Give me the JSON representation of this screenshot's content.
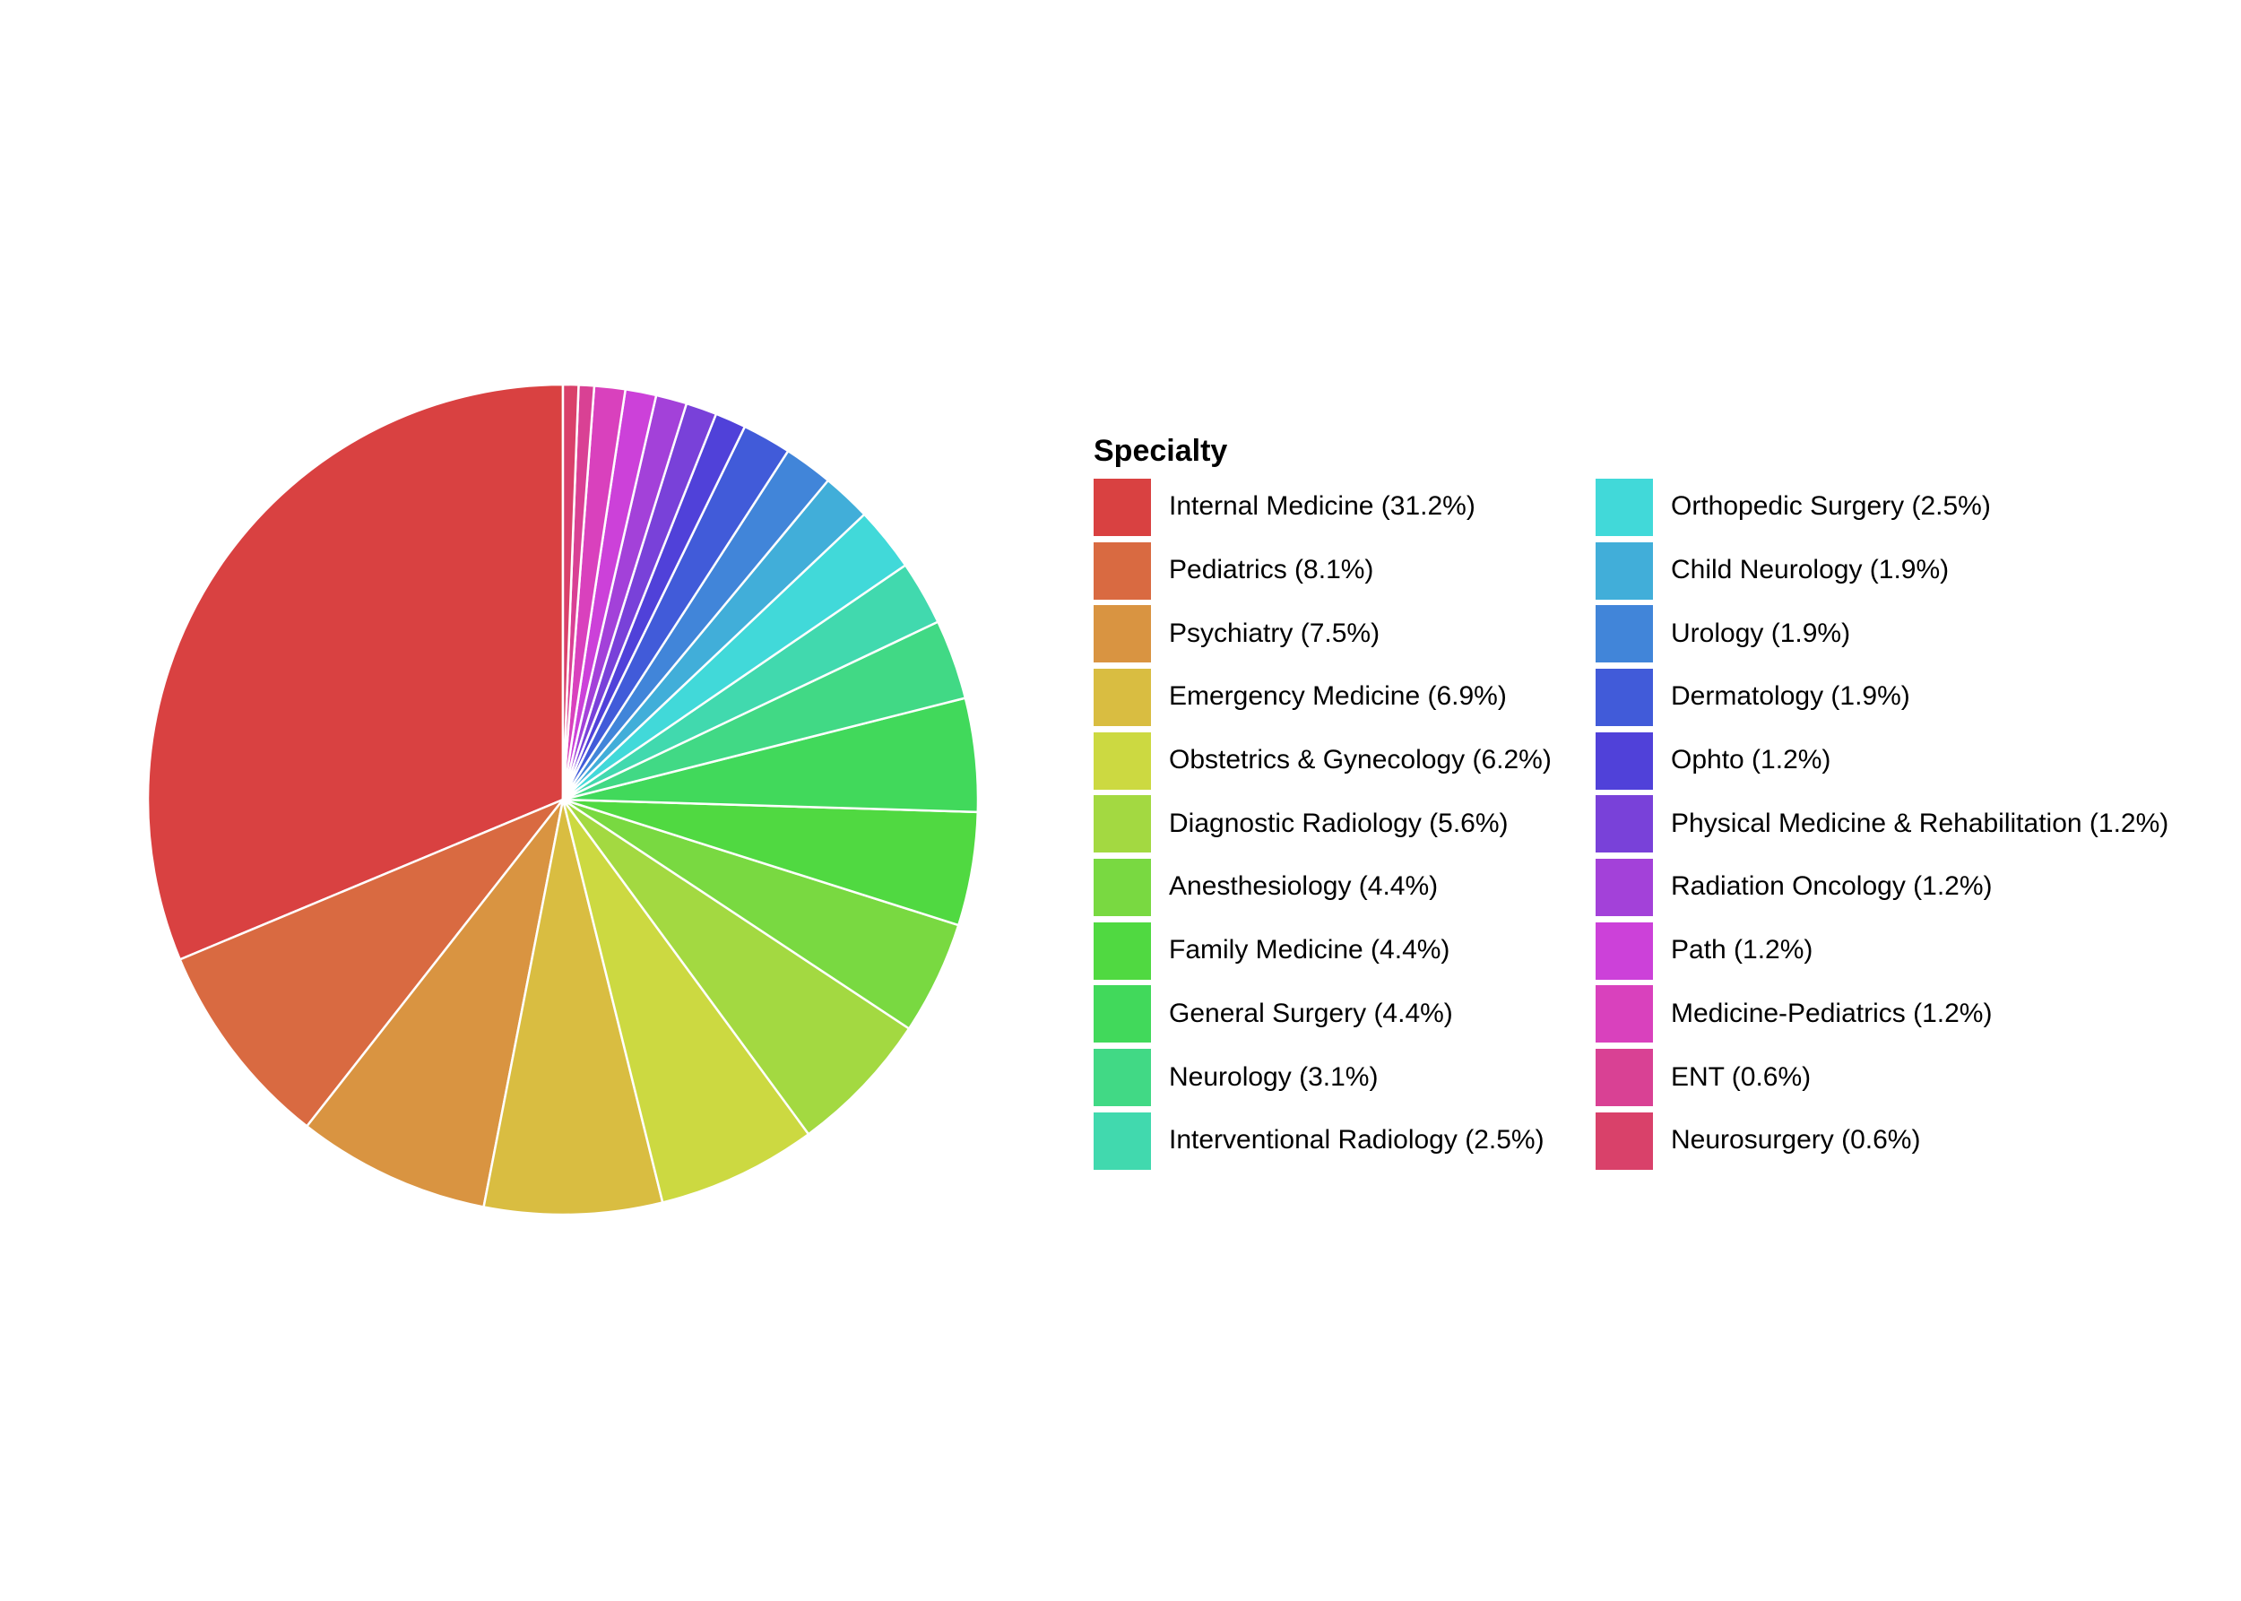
{
  "chart_data": {
    "type": "pie",
    "legend": {
      "title": "Specialty",
      "position": "right",
      "columns": 2
    },
    "slices": [
      {
        "label": "Internal Medicine (31.2%)",
        "value": 31.2,
        "color": "#D94141"
      },
      {
        "label": "Pediatrics (8.1%)",
        "value": 8.1,
        "color": "#D96A41"
      },
      {
        "label": "Psychiatry (7.5%)",
        "value": 7.5,
        "color": "#D99441"
      },
      {
        "label": "Emergency Medicine (6.9%)",
        "value": 6.9,
        "color": "#D9BD41"
      },
      {
        "label": "Obstetrics & Gynecology (6.2%)",
        "value": 6.2,
        "color": "#CCD941"
      },
      {
        "label": "Diagnostic Radiology (5.6%)",
        "value": 5.6,
        "color": "#A3D941"
      },
      {
        "label": "Anesthesiology (4.4%)",
        "value": 4.4,
        "color": "#79D941"
      },
      {
        "label": "Family Medicine (4.4%)",
        "value": 4.4,
        "color": "#50D941"
      },
      {
        "label": "General Surgery (4.4%)",
        "value": 4.4,
        "color": "#41D95B"
      },
      {
        "label": "Neurology (3.1%)",
        "value": 3.1,
        "color": "#41D985"
      },
      {
        "label": "Interventional Radiology (2.5%)",
        "value": 2.5,
        "color": "#41D9AE"
      },
      {
        "label": "Orthopedic Surgery (2.5%)",
        "value": 2.5,
        "color": "#41D9D9"
      },
      {
        "label": "Child Neurology (1.9%)",
        "value": 1.9,
        "color": "#41AED9"
      },
      {
        "label": "Urology (1.9%)",
        "value": 1.9,
        "color": "#4185D9"
      },
      {
        "label": "Dermatology (1.9%)",
        "value": 1.9,
        "color": "#415BD9"
      },
      {
        "label": "Ophto (1.2%)",
        "value": 1.2,
        "color": "#5041D9"
      },
      {
        "label": "Physical Medicine & Rehabilitation (1.2%)",
        "value": 1.2,
        "color": "#7941D9"
      },
      {
        "label": "Radiation Oncology (1.2%)",
        "value": 1.2,
        "color": "#A341D9"
      },
      {
        "label": "Path (1.2%)",
        "value": 1.2,
        "color": "#CC41D9"
      },
      {
        "label": "Medicine-Pediatrics (1.2%)",
        "value": 1.2,
        "color": "#D941BD"
      },
      {
        "label": "ENT (0.6%)",
        "value": 0.6,
        "color": "#D94194"
      },
      {
        "label": "Neurosurgery (0.6%)",
        "value": 0.6,
        "color": "#D9416A"
      }
    ]
  }
}
